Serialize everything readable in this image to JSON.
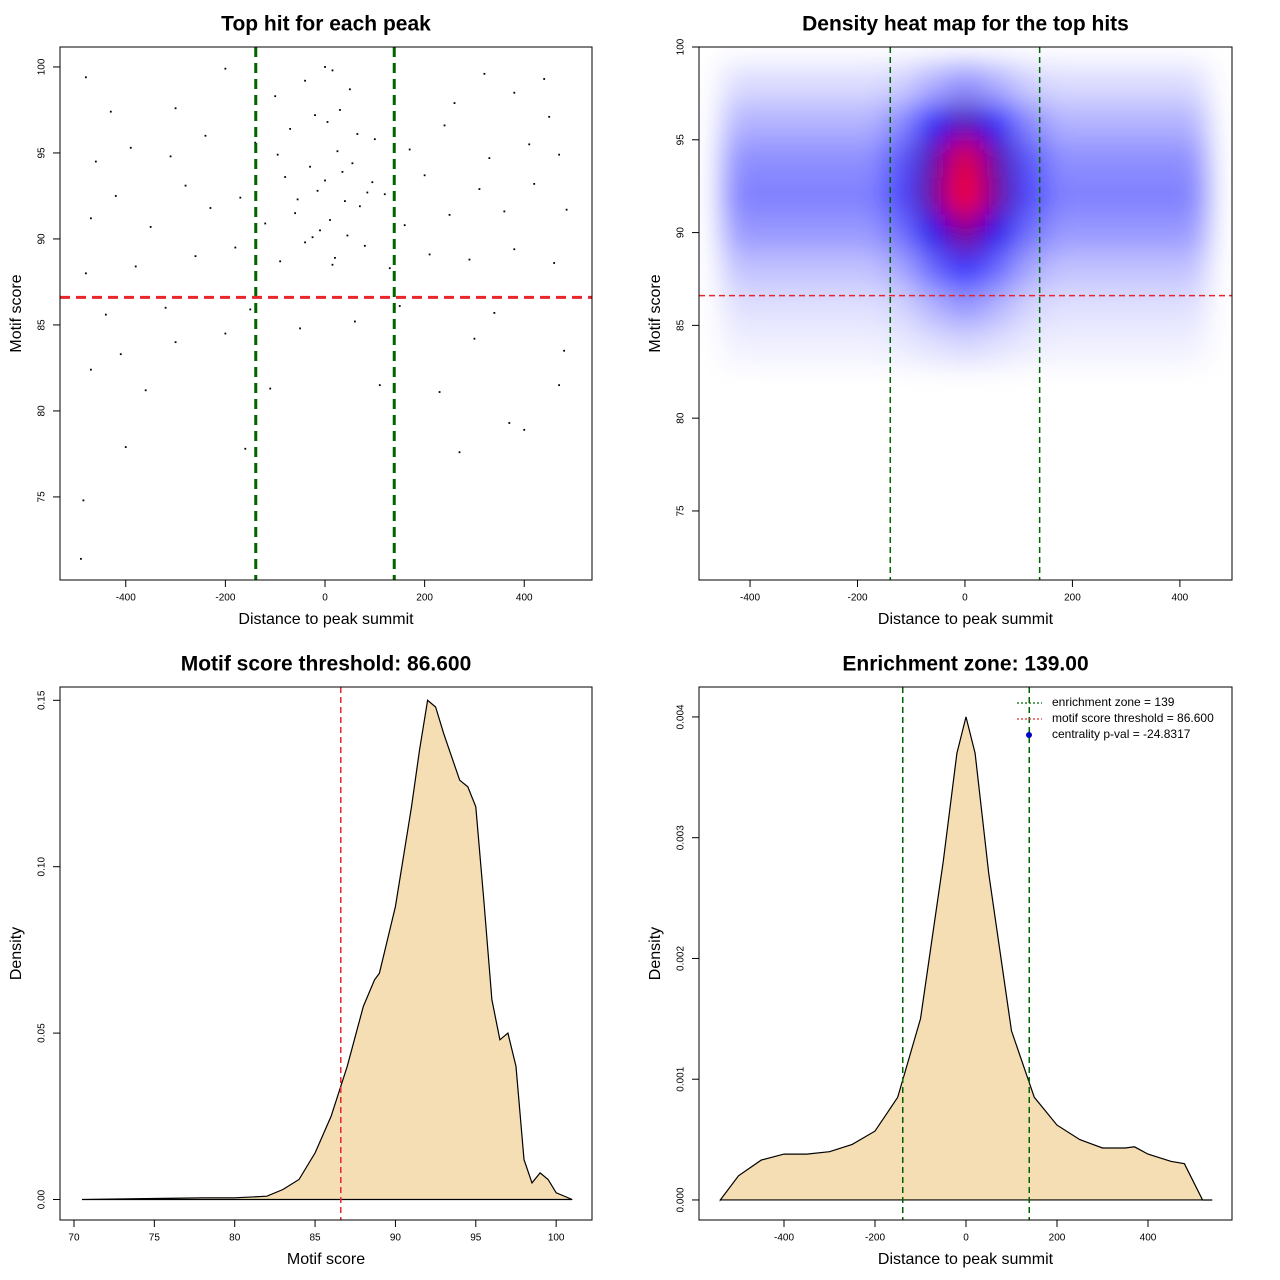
{
  "chart_data": [
    {
      "type": "scatter",
      "title": "Top hit for each peak",
      "x_label": "Distance to peak summit",
      "y_label": "Motif score",
      "xlim": [
        -532,
        536
      ],
      "ylim": [
        70.17,
        101.16
      ],
      "xticks": [
        -400,
        -200,
        0,
        200,
        400
      ],
      "yticks": [
        75,
        80,
        85,
        90,
        95,
        100
      ],
      "color": "#000000",
      "x": [
        -490,
        -485,
        -400,
        -160,
        270,
        370,
        400,
        -360,
        -110,
        110,
        230,
        470,
        -470,
        -410,
        -300,
        -200,
        -50,
        60,
        300,
        480,
        -440,
        -320,
        -150,
        150,
        340,
        -480,
        -380,
        -260,
        -180,
        -90,
        -40,
        -10,
        20,
        45,
        80,
        130,
        210,
        290,
        380,
        460,
        -470,
        -420,
        -350,
        -280,
        -230,
        -170,
        -120,
        -80,
        -60,
        -30,
        -15,
        0,
        10,
        25,
        40,
        55,
        70,
        95,
        120,
        160,
        200,
        250,
        310,
        360,
        420,
        485,
        -460,
        -390,
        -310,
        -240,
        -140,
        -70,
        -20,
        5,
        30,
        65,
        100,
        170,
        240,
        330,
        410,
        470,
        -430,
        -300,
        -100,
        -40,
        15,
        50,
        140,
        260,
        380,
        450,
        -480,
        -200,
        0,
        320,
        440,
        -55,
        35,
        -25,
        85,
        -95,
        15
      ],
      "values": [
        71.4,
        74.8,
        77.9,
        77.8,
        77.6,
        79.3,
        78.9,
        81.2,
        81.3,
        81.5,
        81.1,
        81.5,
        82.4,
        83.3,
        84,
        84.5,
        84.8,
        85.2,
        84.2,
        83.5,
        85.6,
        86,
        85.9,
        86.1,
        85.7,
        88,
        88.4,
        89,
        89.5,
        88.7,
        89.8,
        90.5,
        88.9,
        90.2,
        89.6,
        88.3,
        89.1,
        88.8,
        89.4,
        88.6,
        91.2,
        92.5,
        90.7,
        93.1,
        91.8,
        92.4,
        90.9,
        93.6,
        91.5,
        94.2,
        92.8,
        93.4,
        91.1,
        95.1,
        92.2,
        94.4,
        91.9,
        93.3,
        92.6,
        90.8,
        93.7,
        91.4,
        92.9,
        91.6,
        93.2,
        91.7,
        94.5,
        95.3,
        94.8,
        96,
        95.6,
        96.4,
        97.2,
        96.8,
        97.5,
        96.1,
        95.8,
        95.2,
        96.6,
        94.7,
        95.5,
        94.9,
        97.4,
        97.6,
        98.3,
        99.2,
        99.8,
        98.7,
        98.1,
        97.9,
        98.5,
        97.1,
        99.4,
        99.9,
        100,
        99.6,
        99.3,
        92.3,
        93.9,
        90.1,
        92.7,
        94.9,
        88.5
      ],
      "vlines": [
        {
          "value": -139,
          "color": "#006400"
        },
        {
          "value": 139,
          "color": "#006400"
        }
      ],
      "hlines": [
        {
          "value": 86.6,
          "color": "#e8262b"
        }
      ]
    },
    {
      "type": "heatmap",
      "title": "Density heat map for the top hits",
      "x_label": "Distance to peak summit",
      "y_label": "Motif score",
      "xlim": [
        -495,
        497
      ],
      "ylim": [
        71.28,
        100
      ],
      "xticks": [
        -400,
        -200,
        0,
        200,
        400
      ],
      "yticks": [
        75,
        80,
        85,
        90,
        95,
        100
      ],
      "x": [
        -420,
        -360,
        -300,
        -240,
        -180,
        -120,
        -60,
        0,
        60,
        120,
        180,
        240,
        300,
        360,
        420
      ],
      "y": [
        84,
        86,
        88,
        90,
        92,
        94,
        96,
        98
      ],
      "z": [
        [
          0.03,
          0.03,
          0.03,
          0.03,
          0.03,
          0.04,
          0.06,
          0.08,
          0.06,
          0.04,
          0.03,
          0.03,
          0.03,
          0.03,
          0.03
        ],
        [
          0.06,
          0.06,
          0.06,
          0.06,
          0.06,
          0.08,
          0.15,
          0.21,
          0.15,
          0.08,
          0.06,
          0.06,
          0.06,
          0.06,
          0.06
        ],
        [
          0.12,
          0.12,
          0.12,
          0.12,
          0.12,
          0.17,
          0.3,
          0.42,
          0.3,
          0.17,
          0.12,
          0.12,
          0.12,
          0.12,
          0.12
        ],
        [
          0.2,
          0.2,
          0.2,
          0.2,
          0.2,
          0.28,
          0.53,
          0.75,
          0.53,
          0.28,
          0.2,
          0.2,
          0.2,
          0.2,
          0.2
        ],
        [
          0.25,
          0.25,
          0.25,
          0.25,
          0.25,
          0.36,
          0.7,
          1.0,
          0.7,
          0.36,
          0.25,
          0.25,
          0.25,
          0.25,
          0.25
        ],
        [
          0.22,
          0.22,
          0.22,
          0.22,
          0.22,
          0.33,
          0.66,
          0.95,
          0.66,
          0.33,
          0.22,
          0.22,
          0.22,
          0.22,
          0.22
        ],
        [
          0.15,
          0.15,
          0.15,
          0.15,
          0.15,
          0.23,
          0.45,
          0.65,
          0.45,
          0.23,
          0.15,
          0.15,
          0.15,
          0.15,
          0.15
        ],
        [
          0.07,
          0.07,
          0.07,
          0.07,
          0.07,
          0.09,
          0.16,
          0.22,
          0.16,
          0.09,
          0.07,
          0.07,
          0.07,
          0.07,
          0.07
        ]
      ],
      "colors": [
        "#ffffff",
        "#0000ff",
        "#ff0000"
      ],
      "vlines": [
        {
          "value": -139,
          "color": "#006400"
        },
        {
          "value": 139,
          "color": "#006400"
        }
      ],
      "hlines": [
        {
          "value": 86.6,
          "color": "#e8262b"
        }
      ]
    },
    {
      "type": "area",
      "title": "Motif score threshold: 86.600",
      "x_label": "Motif score",
      "y_label": "Density",
      "xlim": [
        69.13,
        102.23
      ],
      "ylim": [
        -0.00616,
        0.154
      ],
      "xticks": [
        70,
        75,
        80,
        85,
        90,
        95,
        100
      ],
      "yticks": [
        {
          "value": 0,
          "label": "0.00"
        },
        {
          "value": 0.05,
          "label": "0.05"
        },
        {
          "value": 0.1,
          "label": "0.10"
        },
        {
          "value": 0.15,
          "label": "0.15"
        }
      ],
      "color": "#f5deb3",
      "x": [
        70.5,
        75,
        78,
        80,
        82,
        83,
        84,
        85,
        86,
        87,
        88,
        88.7,
        89,
        90,
        91,
        91.5,
        92,
        92.5,
        93,
        93.5,
        94,
        94.5,
        95,
        95.5,
        96,
        96.5,
        97,
        97.5,
        98,
        98.5,
        99,
        99.5,
        100,
        101
      ],
      "values": [
        0,
        0.0003,
        0.0005,
        0.0005,
        0.001,
        0.003,
        0.006,
        0.014,
        0.025,
        0.04,
        0.058,
        0.066,
        0.068,
        0.088,
        0.118,
        0.135,
        0.15,
        0.148,
        0.14,
        0.133,
        0.126,
        0.124,
        0.118,
        0.09,
        0.06,
        0.048,
        0.05,
        0.04,
        0.012,
        0.005,
        0.008,
        0.006,
        0.002,
        0
      ],
      "vlines": [
        {
          "value": 86.6,
          "color": "#e8262b"
        }
      ]
    },
    {
      "type": "area",
      "title": "Enrichment zone: 139.00",
      "x_label": "Distance to peak summit",
      "y_label": "Density",
      "xlim": [
        -586.8,
        584.6
      ],
      "ylim": [
        -0.000166,
        0.004248
      ],
      "xticks": [
        -400,
        -200,
        0,
        200,
        400
      ],
      "yticks": [
        {
          "value": 0,
          "label": "0.000"
        },
        {
          "value": 0.001,
          "label": "0.001"
        },
        {
          "value": 0.002,
          "label": "0.002"
        },
        {
          "value": 0.003,
          "label": "0.003"
        },
        {
          "value": 0.004,
          "label": "0.004"
        }
      ],
      "color": "#f5deb3",
      "x": [
        -540,
        -500,
        -450,
        -400,
        -350,
        -300,
        -250,
        -200,
        -150,
        -100,
        -50,
        -20,
        0,
        20,
        50,
        100,
        150,
        200,
        250,
        300,
        350,
        370,
        400,
        450,
        480,
        520,
        540
      ],
      "values": [
        0,
        0.0002,
        0.00033,
        0.00038,
        0.00038,
        0.0004,
        0.00046,
        0.00057,
        0.00085,
        0.0015,
        0.0028,
        0.0037,
        0.004,
        0.0037,
        0.0027,
        0.0014,
        0.00085,
        0.00062,
        0.0005,
        0.00043,
        0.00043,
        0.00044,
        0.00038,
        0.00032,
        0.0003,
        0,
        0
      ],
      "vlines": [
        {
          "value": -139,
          "color": "#006400"
        },
        {
          "value": 139,
          "color": "#006400"
        }
      ],
      "legend": {
        "position": "topright",
        "entries": [
          {
            "label": "enrichment zone = 139",
            "color": "#006400",
            "marker": "line"
          },
          {
            "label": "motif score threshold = 86.600",
            "color": "#e8262b",
            "marker": "line"
          },
          {
            "label": "centrality p-val = -24.8317",
            "color": "#0000cd",
            "marker": "point"
          }
        ]
      }
    }
  ]
}
